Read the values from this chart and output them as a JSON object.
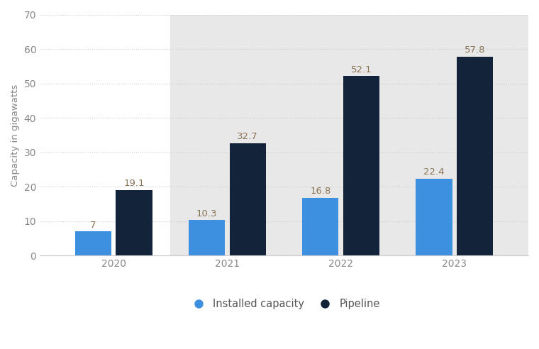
{
  "years": [
    "2020",
    "2021",
    "2022",
    "2023"
  ],
  "installed_capacity": [
    7.0,
    10.3,
    16.8,
    22.4
  ],
  "pipeline": [
    19.1,
    32.7,
    52.1,
    57.8
  ],
  "installed_labels": [
    "7",
    "10.3",
    "16.8",
    "22.4"
  ],
  "pipeline_labels": [
    "19.1",
    "32.7",
    "52.1",
    "57.8"
  ],
  "installed_color": "#3d8fe0",
  "pipeline_color": "#12233a",
  "bar_label_color": "#8b7355",
  "ylabel": "Capacity in gigawatts",
  "ylim": [
    0,
    70
  ],
  "yticks": [
    0,
    10,
    20,
    30,
    40,
    50,
    60,
    70
  ],
  "legend_installed": "Installed capacity",
  "legend_pipeline": "Pipeline",
  "figure_bg_color": "#ffffff",
  "plot_bg_color": "#ffffff",
  "shaded_bg_color": "#e8e8e8",
  "bar_width": 0.32,
  "label_fontsize": 9.5,
  "tick_fontsize": 10,
  "ylabel_fontsize": 9.5,
  "legend_fontsize": 10.5,
  "grid_color": "#cccccc",
  "grid_style": "dotted"
}
